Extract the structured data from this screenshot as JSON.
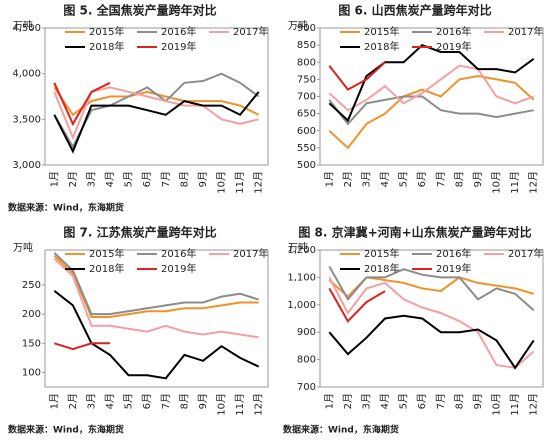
{
  "chart_data": [
    {
      "type": "line",
      "title": "图 5. 全国焦炭产量跨年对比",
      "y_label": "万吨",
      "source": "数据来源：Wind，东海期货",
      "categories": [
        "1月",
        "2月",
        "3月",
        "4月",
        "5月",
        "6月",
        "7月",
        "8月",
        "9月",
        "10月",
        "11月",
        "12月"
      ],
      "ylim": [
        3000,
        4500
      ],
      "yticks": [
        {
          "value": 3000,
          "label": "3,000"
        },
        {
          "value": 3500,
          "label": "3,500"
        },
        {
          "value": 4000,
          "label": "4,000"
        },
        {
          "value": 4500,
          "label": "4,500"
        }
      ],
      "series": [
        {
          "name": "2015年",
          "color": "#f0922a",
          "values": [
            3850,
            3550,
            3700,
            3750,
            3750,
            3800,
            3750,
            3700,
            3700,
            3700,
            3650,
            3550
          ]
        },
        {
          "name": "2016年",
          "color": "#8c8c8c",
          "values": [
            3550,
            3200,
            3600,
            3650,
            3750,
            3850,
            3700,
            3900,
            3920,
            4000,
            3900,
            3750
          ]
        },
        {
          "name": "2017年",
          "color": "#f4a0a0",
          "values": [
            3800,
            3300,
            3800,
            3850,
            3800,
            3750,
            3700,
            3650,
            3650,
            3500,
            3450,
            3500
          ]
        },
        {
          "name": "2018年",
          "color": "#000000",
          "values": [
            3550,
            3150,
            3650,
            3650,
            3650,
            3600,
            3550,
            3700,
            3650,
            3650,
            3550,
            3800
          ]
        },
        {
          "name": "2019年",
          "color": "#e0201c",
          "values": [
            3900,
            3450,
            3800,
            3900,
            null,
            null,
            null,
            null,
            null,
            null,
            null,
            null
          ]
        }
      ]
    },
    {
      "type": "line",
      "title": "图 6. 山西焦炭产量跨年对比",
      "y_label": "万吨",
      "categories": [
        "1月",
        "2月",
        "3月",
        "4月",
        "5月",
        "6月",
        "7月",
        "8月",
        "9月",
        "10月",
        "11月",
        "12月"
      ],
      "ylim": [
        500,
        900
      ],
      "yticks": [
        500,
        550,
        600,
        650,
        700,
        750,
        800,
        850,
        900
      ],
      "series": [
        {
          "name": "2015年",
          "color": "#f0922a",
          "values": [
            600,
            550,
            620,
            650,
            700,
            720,
            700,
            750,
            760,
            750,
            740,
            690
          ]
        },
        {
          "name": "2016年",
          "color": "#8c8c8c",
          "values": [
            690,
            620,
            680,
            690,
            700,
            700,
            660,
            650,
            650,
            640,
            650,
            660
          ]
        },
        {
          "name": "2017年",
          "color": "#f4a0a0",
          "values": [
            710,
            660,
            690,
            730,
            680,
            710,
            750,
            790,
            780,
            700,
            680,
            700
          ]
        },
        {
          "name": "2018年",
          "color": "#000000",
          "values": [
            680,
            630,
            760,
            800,
            800,
            850,
            830,
            830,
            780,
            780,
            770,
            810
          ]
        },
        {
          "name": "2019年",
          "color": "#e0201c",
          "values": [
            790,
            720,
            750,
            800,
            null,
            null,
            null,
            null,
            null,
            null,
            null,
            null
          ]
        }
      ]
    },
    {
      "type": "line",
      "title": "图 7. 江苏焦炭产量跨年对比",
      "y_label": "万吨",
      "source": "数据来源：Wind，东海期货",
      "categories": [
        "1月",
        "2月",
        "3月",
        "4月",
        "5月",
        "6月",
        "7月",
        "8月",
        "9月",
        "10月",
        "11月",
        "12月"
      ],
      "ylim": [
        75,
        310
      ],
      "yticks": [
        100,
        150,
        200,
        250
      ],
      "series": [
        {
          "name": "2015年",
          "color": "#f0922a",
          "values": [
            300,
            270,
            195,
            195,
            200,
            205,
            205,
            210,
            210,
            215,
            220,
            220
          ]
        },
        {
          "name": "2016年",
          "color": "#8c8c8c",
          "values": [
            305,
            275,
            200,
            200,
            205,
            210,
            215,
            220,
            220,
            230,
            235,
            225
          ]
        },
        {
          "name": "2017年",
          "color": "#f4a0a0",
          "values": [
            295,
            265,
            180,
            180,
            175,
            170,
            180,
            170,
            165,
            170,
            165,
            160
          ]
        },
        {
          "name": "2018年",
          "color": "#000000",
          "values": [
            240,
            215,
            150,
            130,
            95,
            95,
            90,
            130,
            120,
            145,
            125,
            110
          ]
        },
        {
          "name": "2019年",
          "color": "#e0201c",
          "values": [
            150,
            140,
            150,
            150,
            null,
            null,
            null,
            null,
            null,
            null,
            null,
            null
          ]
        }
      ]
    },
    {
      "type": "line",
      "title": "图 8. 京津冀+河南+山东焦炭产量跨年对比",
      "y_label": "万吨",
      "source": "数据来源：Wind，东海期货",
      "categories": [
        "1月",
        "2月",
        "3月",
        "4月",
        "5月",
        "6月",
        "7月",
        "8月",
        "9月",
        "10月",
        "11月",
        "12月"
      ],
      "ylim": [
        700,
        1200
      ],
      "yticks": [
        700,
        800,
        900,
        {
          "value": 1000,
          "label": "1,000"
        },
        {
          "value": 1100,
          "label": "1,100"
        },
        {
          "value": 1200,
          "label": "1,200"
        }
      ],
      "series": [
        {
          "name": "2015年",
          "color": "#f0922a",
          "values": [
            1090,
            1030,
            1100,
            1090,
            1080,
            1060,
            1050,
            1100,
            1080,
            1070,
            1060,
            1040
          ]
        },
        {
          "name": "2016年",
          "color": "#8c8c8c",
          "values": [
            1140,
            1020,
            1100,
            1100,
            1130,
            1110,
            1100,
            1100,
            1020,
            1060,
            1040,
            980
          ]
        },
        {
          "name": "2017年",
          "color": "#f4a0a0",
          "values": [
            1100,
            970,
            1060,
            1080,
            1020,
            990,
            970,
            940,
            900,
            780,
            770,
            830
          ]
        },
        {
          "name": "2018年",
          "color": "#000000",
          "values": [
            900,
            820,
            880,
            950,
            960,
            950,
            900,
            900,
            910,
            870,
            770,
            870
          ]
        },
        {
          "name": "2019年",
          "color": "#e0201c",
          "values": [
            1060,
            940,
            1010,
            1050,
            null,
            null,
            null,
            null,
            null,
            null,
            null,
            null
          ]
        }
      ]
    }
  ]
}
